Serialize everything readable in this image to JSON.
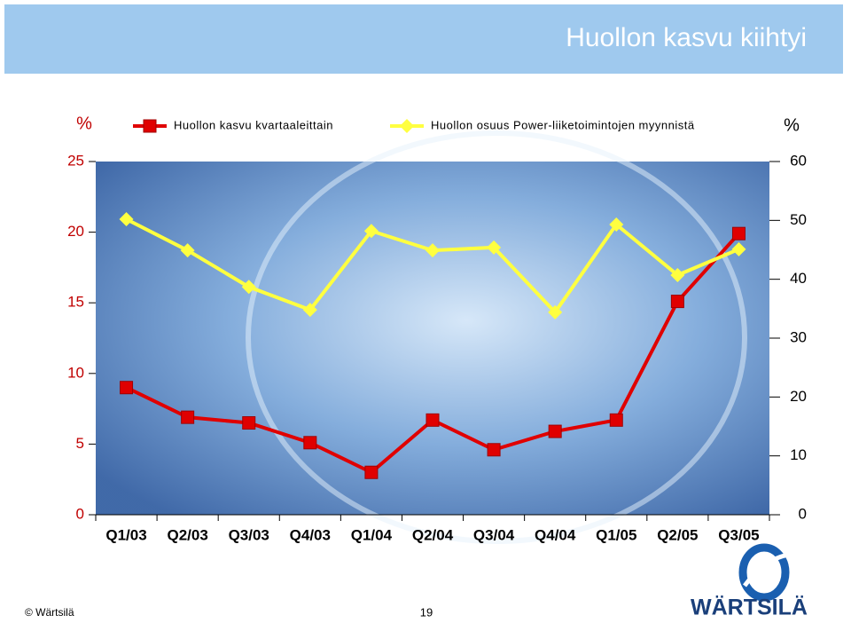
{
  "chart_data": {
    "type": "line",
    "title": "Huollon kasvu kiihtyi",
    "y_label": "%",
    "y2_label": "%",
    "categories": [
      "Q1/03",
      "Q2/03",
      "Q3/03",
      "Q4/03",
      "Q1/04",
      "Q2/04",
      "Q3/04",
      "Q4/04",
      "Q1/05",
      "Q2/05",
      "Q3/05"
    ],
    "series": [
      {
        "name": "Huollon kasvu kvartaaleittain",
        "color": "#e00000",
        "marker": "square",
        "values": [
          9.0,
          6.9,
          6.5,
          5.1,
          3.0,
          6.7,
          4.6,
          5.9,
          6.7,
          15.1,
          19.9
        ]
      },
      {
        "name": "Huollon osuus Power-liiketoimintojen myynnistä",
        "color": "#ffff40",
        "marker": "diamond",
        "axis": "y2",
        "values": [
          50.2,
          44.9,
          38.7,
          34.8,
          48.2,
          44.9,
          45.4,
          34.4,
          49.3,
          40.7,
          45.1
        ]
      }
    ],
    "ylim": [
      0,
      25
    ],
    "yticks": [
      0,
      5,
      10,
      15,
      20,
      25
    ],
    "y2lim": [
      0,
      60
    ],
    "y2ticks": [
      0,
      10,
      20,
      30,
      40,
      50,
      60
    ],
    "grid": false
  },
  "footer": {
    "copyright": "© Wärtsilä",
    "page": "19",
    "logo": "WÄRTSILÄ"
  }
}
